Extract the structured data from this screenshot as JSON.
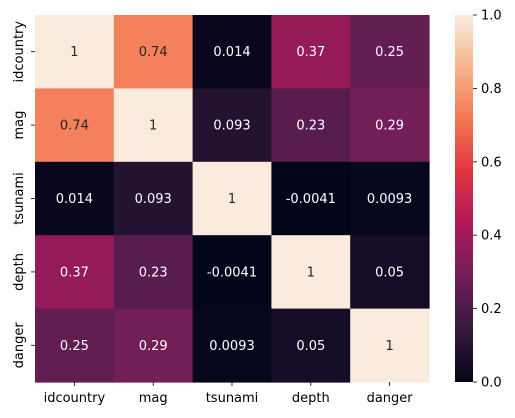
{
  "chart_data": {
    "type": "heatmap",
    "x_categories": [
      "idcountry",
      "mag",
      "tsunami",
      "depth",
      "danger"
    ],
    "y_categories": [
      "idcountry",
      "mag",
      "tsunami",
      "depth",
      "danger"
    ],
    "values": [
      [
        1,
        0.74,
        0.014,
        0.37,
        0.25
      ],
      [
        0.74,
        1,
        0.093,
        0.23,
        0.29
      ],
      [
        0.014,
        0.093,
        1,
        -0.0041,
        0.0093
      ],
      [
        0.37,
        0.23,
        -0.0041,
        1,
        0.05
      ],
      [
        0.25,
        0.29,
        0.0093,
        0.05,
        1
      ]
    ],
    "labels": [
      [
        "1",
        "0.74",
        "0.014",
        "0.37",
        "0.25"
      ],
      [
        "0.74",
        "1",
        "0.093",
        "0.23",
        "0.29"
      ],
      [
        "0.014",
        "0.093",
        "1",
        "-0.0041",
        "0.0093"
      ],
      [
        "0.37",
        "0.23",
        "-0.0041",
        "1",
        "0.05"
      ],
      [
        "0.25",
        "0.29",
        "0.0093",
        "0.05",
        "1"
      ]
    ],
    "colorbar": {
      "vmin": 0.0,
      "vmax": 1.0,
      "ticks": [
        0.0,
        0.2,
        0.4,
        0.6,
        0.8,
        1.0
      ],
      "tick_labels": [
        "0.0",
        "0.2",
        "0.4",
        "0.6",
        "0.8",
        "1.0"
      ],
      "colormap": "rocket",
      "colormap_stops": [
        "#03051a",
        "#36193e",
        "#701f57",
        "#ae1759",
        "#e13342",
        "#f37651",
        "#f6b48e",
        "#faebdd"
      ]
    },
    "title": "",
    "xlabel": "",
    "ylabel": "",
    "grid": false
  }
}
